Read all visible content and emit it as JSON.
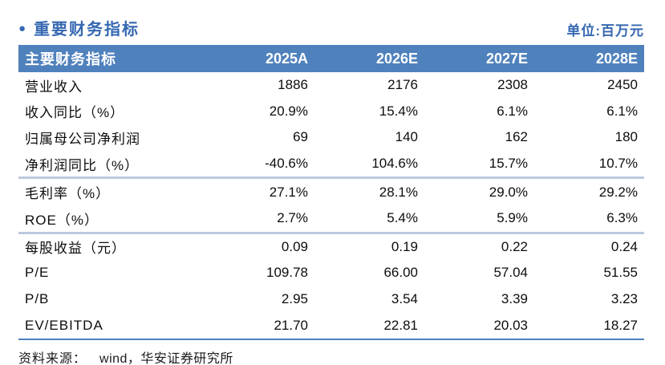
{
  "page": {
    "title": "重要财务指标",
    "bullet": "●",
    "unit_label": "单位:百万元"
  },
  "colors": {
    "accent_header_bg": "#4f81bd",
    "title_blue": "#3568b1",
    "section_divider": "#bcc9df",
    "bottom_border": "#4f81bd"
  },
  "table": {
    "header": {
      "label": "主要财务指标",
      "cols": [
        "2025A",
        "2026E",
        "2027E",
        "2028E"
      ]
    },
    "rows": [
      {
        "label": "营业收入",
        "values": [
          "1886",
          "2176",
          "2308",
          "2450"
        ]
      },
      {
        "label": "收入同比（%）",
        "values": [
          "20.9%",
          "15.4%",
          "6.1%",
          "6.1%"
        ]
      },
      {
        "label": "归属母公司净利润",
        "values": [
          "69",
          "140",
          "162",
          "180"
        ]
      },
      {
        "label": "净利润同比（%）",
        "values": [
          "-40.6%",
          "104.6%",
          "15.7%",
          "10.7%"
        ]
      },
      {
        "label": "毛利率（%）",
        "values": [
          "27.1%",
          "28.1%",
          "29.0%",
          "29.2%"
        ]
      },
      {
        "label": "ROE（%）",
        "values": [
          "2.7%",
          "5.4%",
          "5.9%",
          "6.3%"
        ]
      },
      {
        "label": "每股收益（元）",
        "values": [
          "0.09",
          "0.19",
          "0.22",
          "0.24"
        ]
      },
      {
        "label": "P/E",
        "values": [
          "109.78",
          "66.00",
          "57.04",
          "51.55"
        ]
      },
      {
        "label": "P/B",
        "values": [
          "2.95",
          "3.54",
          "3.39",
          "3.23"
        ]
      },
      {
        "label": "EV/EBITDA",
        "values": [
          "21.70",
          "22.81",
          "20.03",
          "18.27"
        ]
      }
    ]
  },
  "footer": {
    "source_label": "资料来源：",
    "source_value": "wind，华安证券研究所"
  }
}
